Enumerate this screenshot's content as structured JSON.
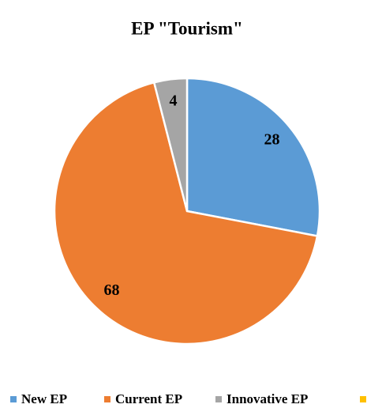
{
  "chart_data": {
    "type": "pie",
    "title": "EP \"Tourism\"",
    "categories": [
      "New EP",
      "Current EP",
      "Innovative EP"
    ],
    "values": [
      28,
      68,
      4
    ],
    "colors": [
      "#5b9bd5",
      "#ed7d31",
      "#a5a5a5"
    ]
  }
}
